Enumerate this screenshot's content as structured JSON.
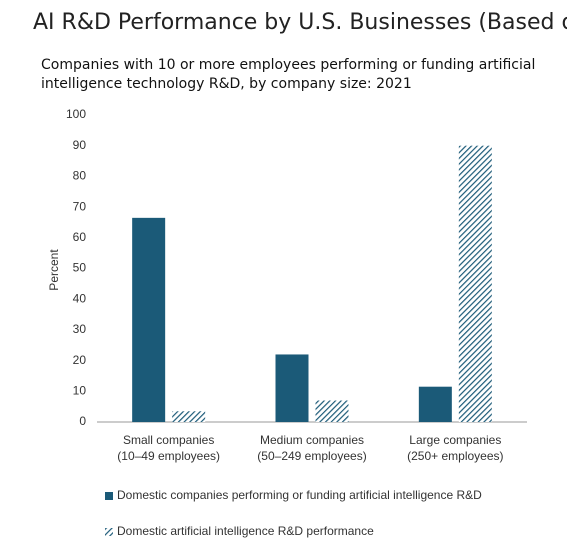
{
  "chart_data": {
    "type": "bar",
    "title": "AI R&D Performance by U.S. Businesses (Based on D",
    "subtitle": "Companies with 10 or more employees performing or funding artificial intelligence technology R&D, by company size: 2021",
    "y_label": "Percent",
    "categories": [
      "Small companies\n(10–49 employees)",
      "Medium companies\n(50–249 employees)",
      "Large companies\n(250+ employees)"
    ],
    "series": [
      {
        "name": "Domestic companies performing or funding artificial intelligence R&D",
        "color": "#1b5a78",
        "pattern": "solid",
        "values": [
          66.5,
          22,
          11.5
        ]
      },
      {
        "name": "Domestic artificial intelligence R&D performance",
        "color": "#1b5a78",
        "pattern": "hatch",
        "values": [
          3.5,
          7,
          90
        ]
      }
    ],
    "ylim": [
      0,
      100
    ],
    "yticks": [
      0,
      10,
      20,
      30,
      40,
      50,
      60,
      70,
      80,
      90,
      100
    ],
    "grid": false
  }
}
